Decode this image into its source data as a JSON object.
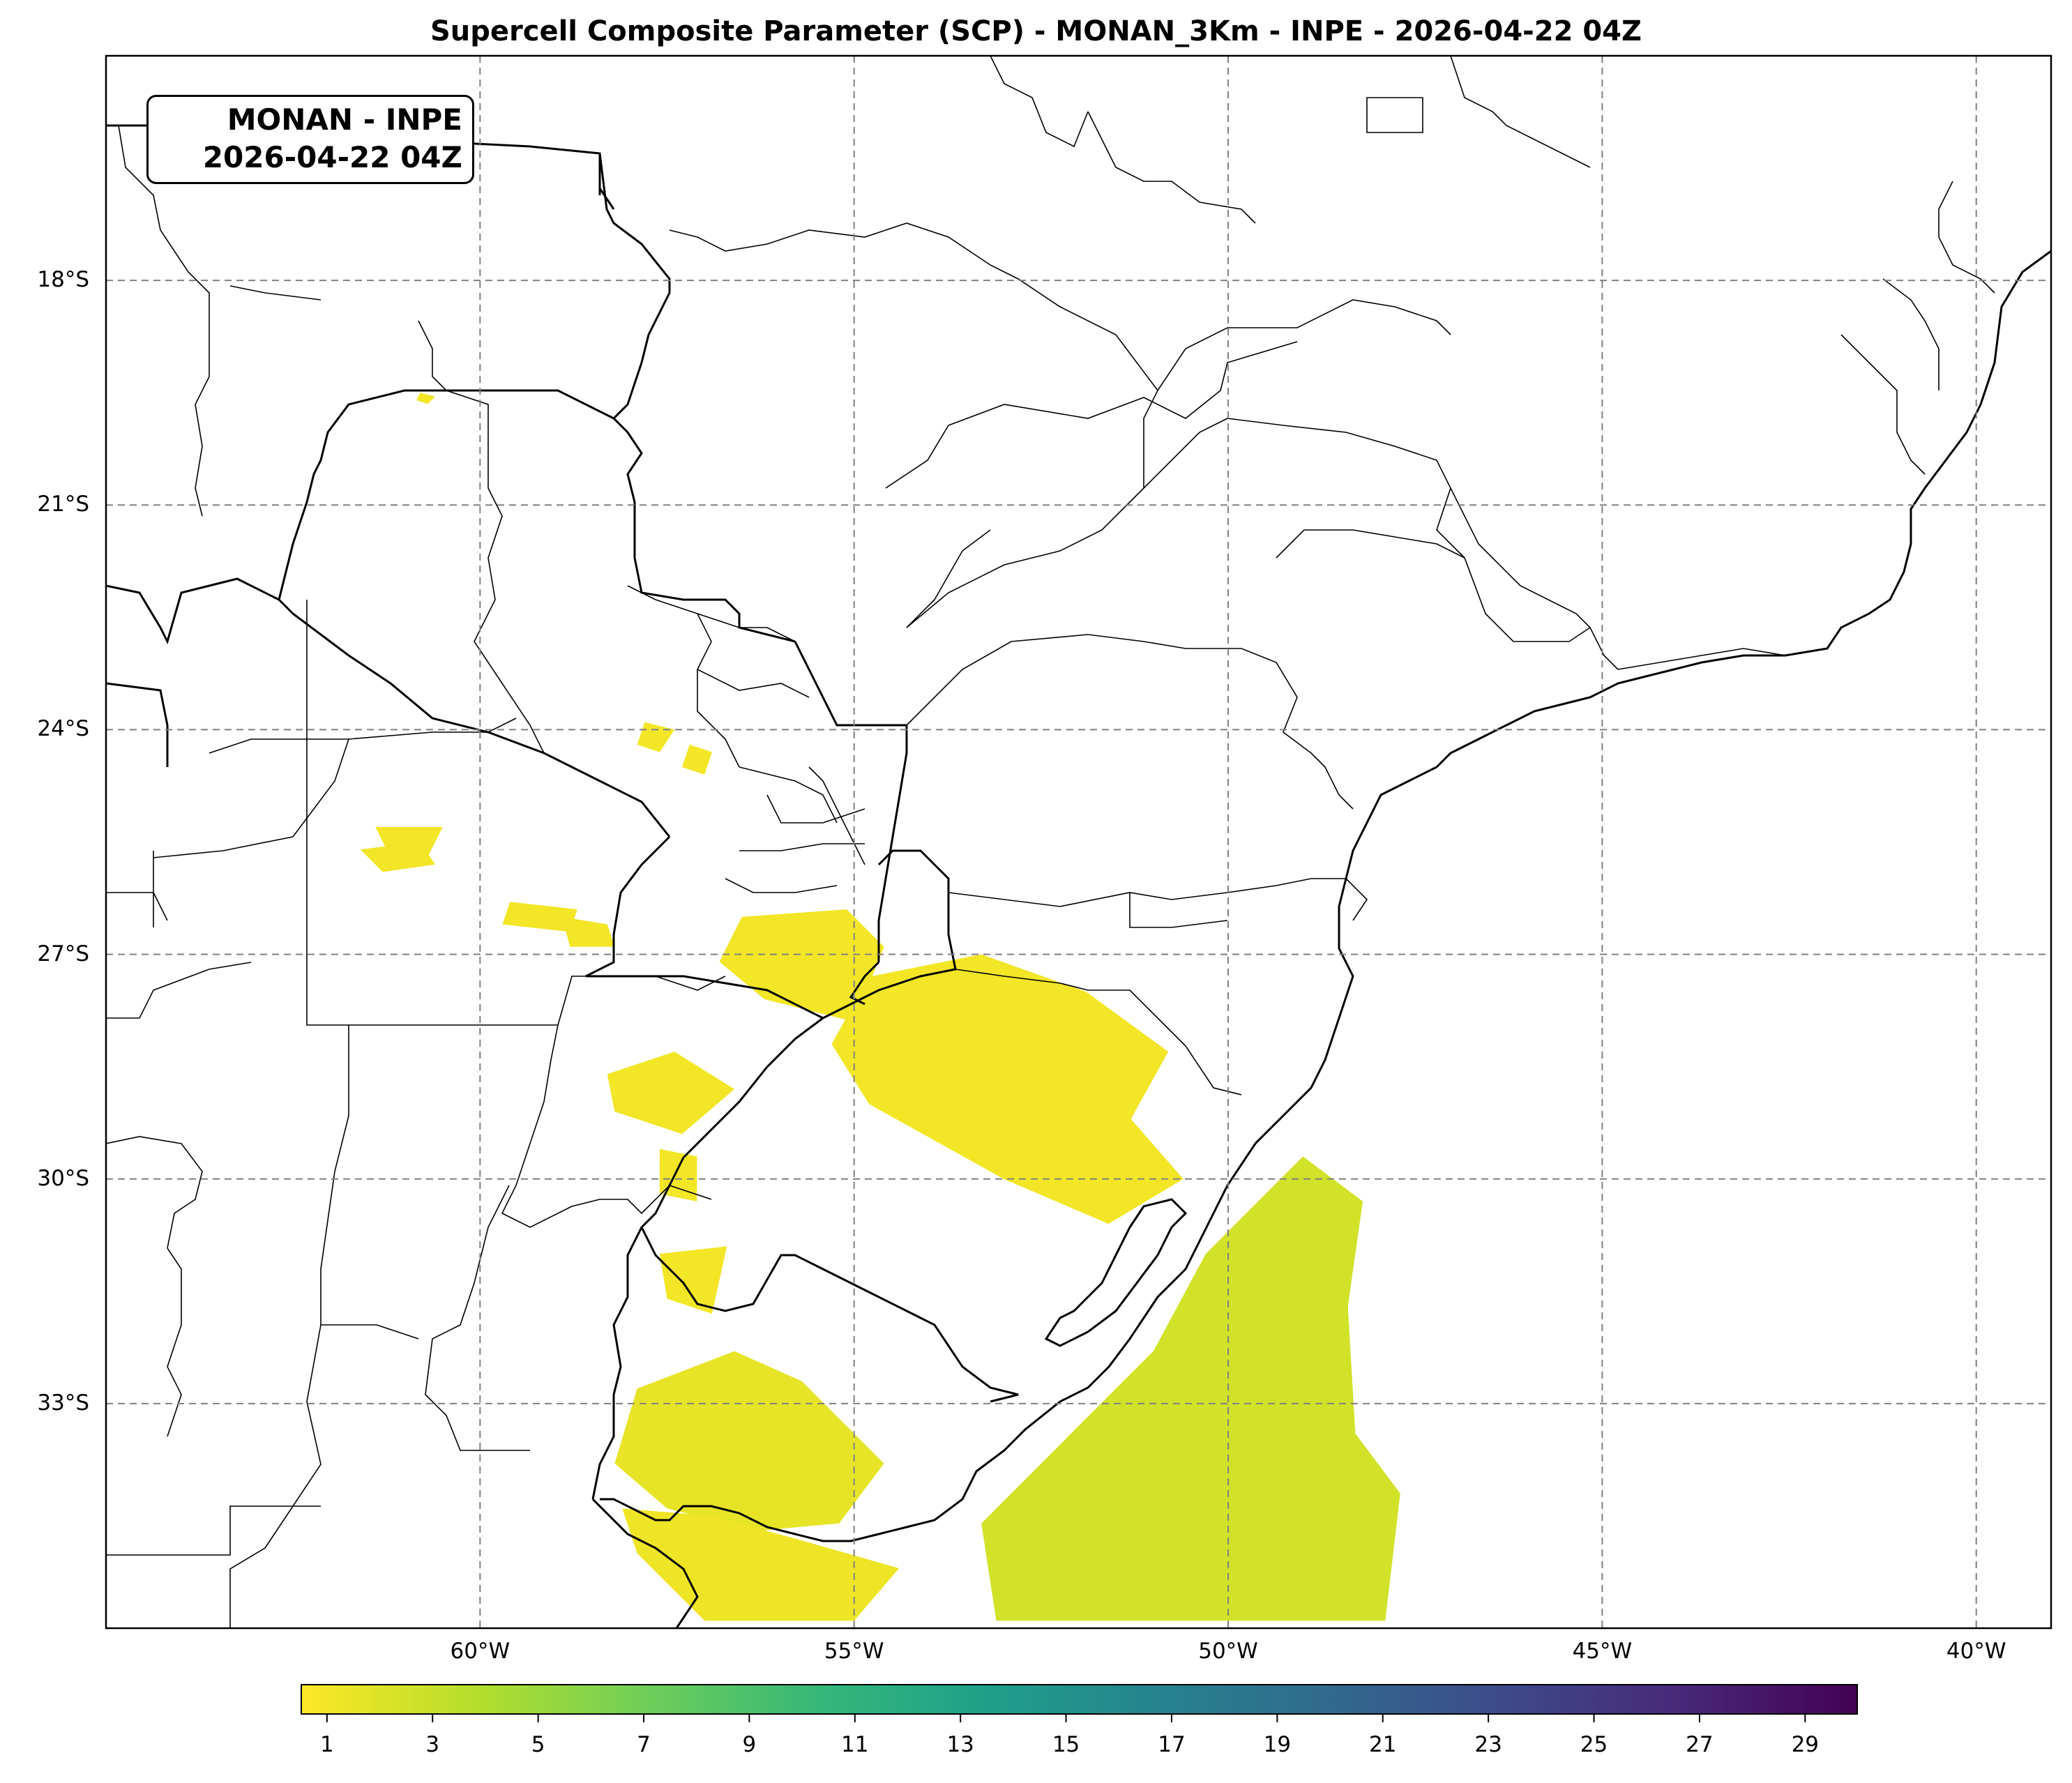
{
  "title": "Supercell Composite Parameter (SCP) - MONAN_3Km - INPE - 2026-04-22 04Z",
  "info_box": {
    "line1": "MONAN - INPE",
    "line2": "2026-04-22 04Z"
  },
  "map": {
    "extent": {
      "lon_min": -65,
      "lon_max": -39,
      "lat_min": -36,
      "lat_max": -15
    },
    "lat_ticks": [
      {
        "value": -18,
        "label": "18°S"
      },
      {
        "value": -21,
        "label": "21°S"
      },
      {
        "value": -24,
        "label": "24°S"
      },
      {
        "value": -27,
        "label": "27°S"
      },
      {
        "value": -30,
        "label": "30°S"
      },
      {
        "value": -33,
        "label": "33°S"
      }
    ],
    "lon_ticks": [
      {
        "value": -60,
        "label": "60°W"
      },
      {
        "value": -55,
        "label": "55°W"
      },
      {
        "value": -50,
        "label": "50°W"
      },
      {
        "value": -45,
        "label": "45°W"
      },
      {
        "value": -40,
        "label": "40°W"
      }
    ],
    "gridlines": true,
    "scp_regions": [
      {
        "name": "ocean-south-brazil-uruguay",
        "level": 2.5,
        "points": [
          [
            -49.0,
            -29.7
          ],
          [
            -48.2,
            -30.3
          ],
          [
            -48.4,
            -31.7
          ],
          [
            -48.3,
            -33.4
          ],
          [
            -47.7,
            -34.2
          ],
          [
            -47.9,
            -35.9
          ],
          [
            -53.1,
            -35.9
          ],
          [
            -53.3,
            -34.6
          ],
          [
            -52.1,
            -33.4
          ],
          [
            -51.0,
            -32.3
          ],
          [
            -50.3,
            -31.0
          ]
        ]
      },
      {
        "name": "uruguay-south",
        "level": 1.5,
        "points": [
          [
            -57.9,
            -32.8
          ],
          [
            -56.6,
            -32.3
          ],
          [
            -55.7,
            -32.7
          ],
          [
            -54.6,
            -33.8
          ],
          [
            -55.2,
            -34.6
          ],
          [
            -56.3,
            -34.7
          ],
          [
            -57.5,
            -34.4
          ],
          [
            -58.2,
            -33.8
          ]
        ]
      },
      {
        "name": "rio-de-la-plata",
        "level": 1.2,
        "points": [
          [
            -58.1,
            -34.4
          ],
          [
            -56.9,
            -34.5
          ],
          [
            -55.8,
            -34.8
          ],
          [
            -54.4,
            -35.2
          ],
          [
            -55.0,
            -35.9
          ],
          [
            -57.0,
            -35.9
          ],
          [
            -57.9,
            -35.0
          ]
        ]
      },
      {
        "name": "uruguay-north",
        "level": 1.0,
        "points": [
          [
            -57.6,
            -31.0
          ],
          [
            -56.7,
            -30.9
          ],
          [
            -56.9,
            -31.8
          ],
          [
            -57.5,
            -31.6
          ]
        ]
      },
      {
        "name": "rio-grande-do-sul-north",
        "level": 1.0,
        "points": [
          [
            -54.8,
            -27.3
          ],
          [
            -53.3,
            -27.0
          ],
          [
            -51.9,
            -27.5
          ],
          [
            -50.8,
            -28.3
          ],
          [
            -51.3,
            -29.2
          ],
          [
            -50.6,
            -30.0
          ],
          [
            -51.6,
            -30.6
          ],
          [
            -53.0,
            -30.0
          ],
          [
            -54.8,
            -29.0
          ],
          [
            -55.3,
            -28.2
          ]
        ]
      },
      {
        "name": "corrientes",
        "level": 1.0,
        "points": [
          [
            -58.3,
            -28.6
          ],
          [
            -57.4,
            -28.3
          ],
          [
            -56.6,
            -28.8
          ],
          [
            -57.3,
            -29.4
          ],
          [
            -58.2,
            -29.1
          ]
        ]
      },
      {
        "name": "corrientes-south",
        "level": 1.0,
        "points": [
          [
            -57.6,
            -29.6
          ],
          [
            -57.1,
            -29.7
          ],
          [
            -57.1,
            -30.3
          ],
          [
            -57.6,
            -30.2
          ]
        ]
      },
      {
        "name": "misiones",
        "level": 1.0,
        "points": [
          [
            -56.5,
            -26.5
          ],
          [
            -55.1,
            -26.4
          ],
          [
            -54.6,
            -26.9
          ],
          [
            -55.0,
            -27.9
          ],
          [
            -56.2,
            -27.6
          ],
          [
            -56.8,
            -27.1
          ]
        ]
      },
      {
        "name": "chaco-west",
        "level": 1.0,
        "points": [
          [
            -61.6,
            -25.6
          ],
          [
            -60.8,
            -25.5
          ],
          [
            -60.6,
            -25.8
          ],
          [
            -61.3,
            -25.9
          ]
        ]
      },
      {
        "name": "chaco-center",
        "level": 1.0,
        "points": [
          [
            -59.6,
            -26.3
          ],
          [
            -58.7,
            -26.4
          ],
          [
            -58.8,
            -26.7
          ],
          [
            -59.7,
            -26.6
          ]
        ]
      },
      {
        "name": "chaco-east",
        "level": 1.0,
        "points": [
          [
            -58.9,
            -26.5
          ],
          [
            -58.3,
            -26.6
          ],
          [
            -58.2,
            -26.9
          ],
          [
            -58.8,
            -26.9
          ]
        ]
      },
      {
        "name": "chaco-far-west",
        "level": 1.0,
        "points": [
          [
            -61.4,
            -25.3
          ],
          [
            -60.5,
            -25.3
          ],
          [
            -60.7,
            -25.7
          ],
          [
            -61.2,
            -25.7
          ]
        ]
      },
      {
        "name": "paraguay-east",
        "level": 1.0,
        "points": [
          [
            -57.8,
            -23.9
          ],
          [
            -57.4,
            -24.0
          ],
          [
            -57.6,
            -24.3
          ],
          [
            -57.9,
            -24.2
          ]
        ]
      },
      {
        "name": "paraguay-east-2",
        "level": 1.0,
        "points": [
          [
            -57.2,
            -24.2
          ],
          [
            -56.9,
            -24.3
          ],
          [
            -57.0,
            -24.6
          ],
          [
            -57.3,
            -24.5
          ]
        ]
      },
      {
        "name": "north-bolivia-speck",
        "level": 1.0,
        "points": [
          [
            -60.8,
            -19.5
          ],
          [
            -60.6,
            -19.55
          ],
          [
            -60.7,
            -19.65
          ],
          [
            -60.85,
            -19.6
          ]
        ]
      }
    ]
  },
  "colorbar": {
    "cmap": "viridis_r",
    "min": 0.5,
    "max": 30,
    "ticks": [
      "1",
      "3",
      "5",
      "7",
      "9",
      "11",
      "13",
      "15",
      "17",
      "19",
      "21",
      "23",
      "25",
      "27",
      "29"
    ],
    "colors": [
      "#fde725",
      "#b5de2b",
      "#6ece58",
      "#35b779",
      "#1f9e89",
      "#26828e",
      "#31688e",
      "#3e4989",
      "#482878",
      "#440154"
    ]
  }
}
